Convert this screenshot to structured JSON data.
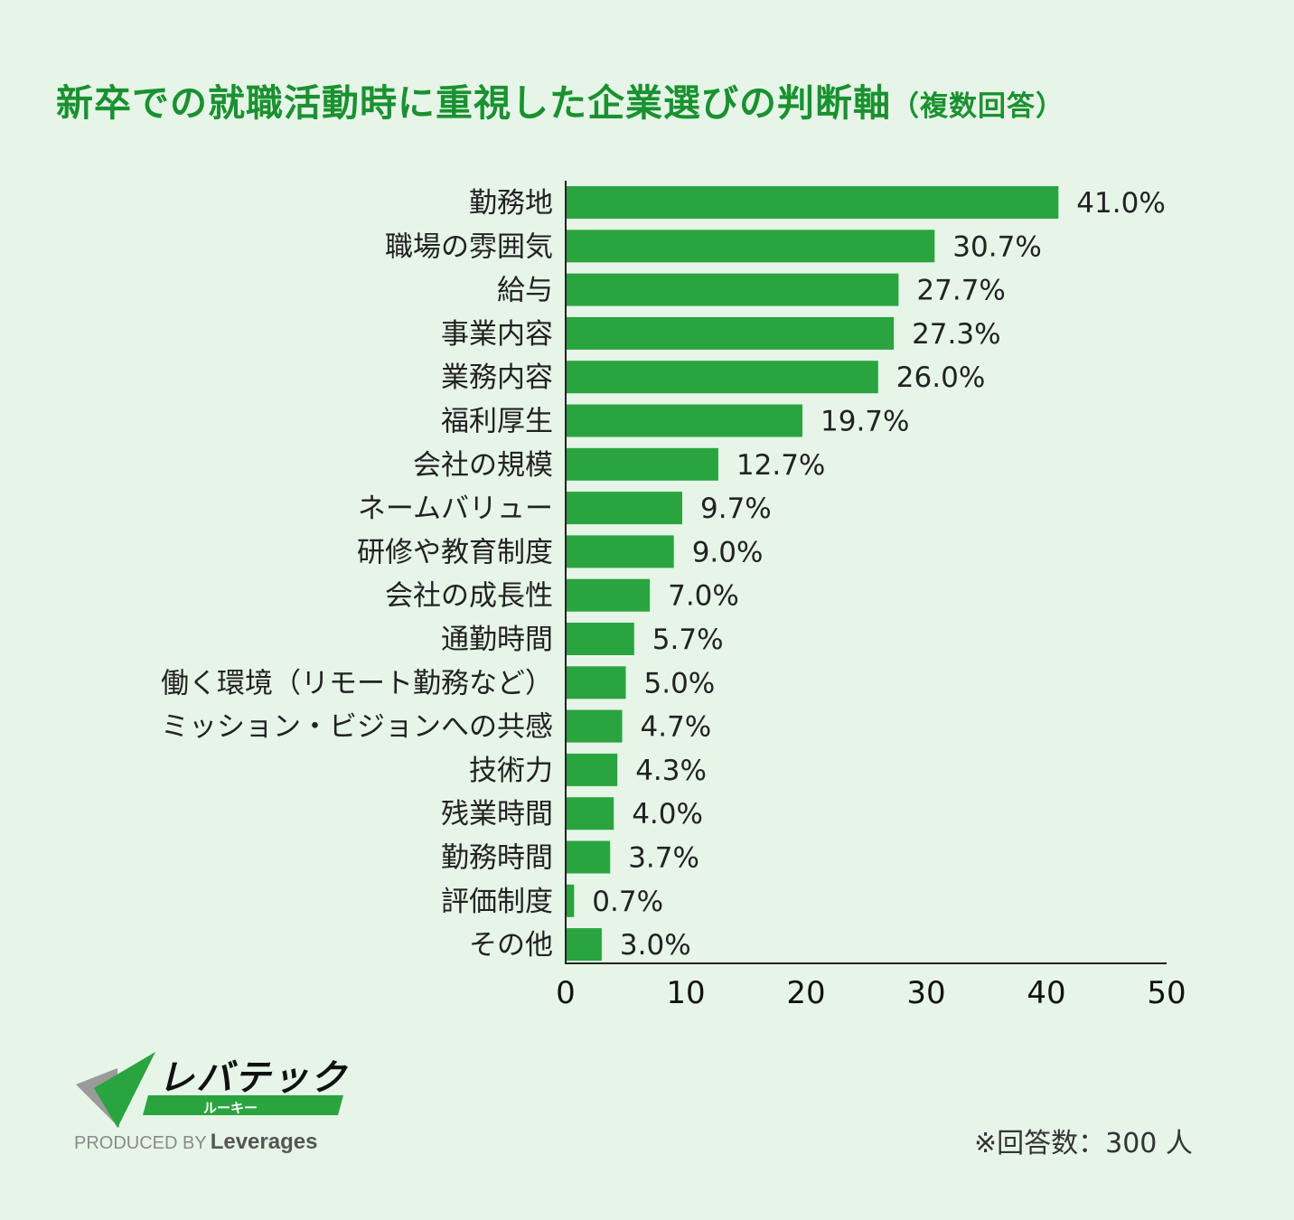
{
  "header": {
    "title": "新卒での就職活動時に重視した企業選びの判断軸",
    "subtitle": "（複数回答）"
  },
  "colors": {
    "bar": "#2aa43f",
    "title": "#1a9130",
    "background": "#e6f5e8"
  },
  "chart_data": {
    "type": "bar",
    "orientation": "horizontal",
    "title": "新卒での就職活動時に重視した企業選びの判断軸（複数回答）",
    "categories": [
      "勤務地",
      "職場の雰囲気",
      "給与",
      "事業内容",
      "業務内容",
      "福利厚生",
      "会社の規模",
      "ネームバリュー",
      "研修や教育制度",
      "会社の成長性",
      "通勤時間",
      "働く環境（リモート勤務など）",
      "ミッション・ビジョンへの共感",
      "技術力",
      "残業時間",
      "勤務時間",
      "評価制度",
      "その他"
    ],
    "values": [
      41.0,
      30.7,
      27.7,
      27.3,
      26.0,
      19.7,
      12.7,
      9.7,
      9.0,
      7.0,
      5.7,
      5.0,
      4.7,
      4.3,
      4.0,
      3.7,
      0.7,
      3.0
    ],
    "data_labels": [
      "41.0%",
      "30.7%",
      "27.7%",
      "27.3%",
      "26.0%",
      "19.7%",
      "12.7%",
      "9.7%",
      "9.0%",
      "7.0%",
      "5.7%",
      "5.0%",
      "4.7%",
      "4.3%",
      "4.0%",
      "3.7%",
      "0.7%",
      "3.0%"
    ],
    "xlim": [
      0,
      50
    ],
    "xticks": [
      "0",
      "10",
      "20",
      "30",
      "40",
      "50"
    ],
    "xlabel": "",
    "ylabel": "",
    "grid": false
  },
  "footer": {
    "logo_text": "レバテック",
    "logo_sub": "ルーキー",
    "produced_by": "PRODUCED BY",
    "brand": "Leverages",
    "note": "※回答数：300 人"
  }
}
